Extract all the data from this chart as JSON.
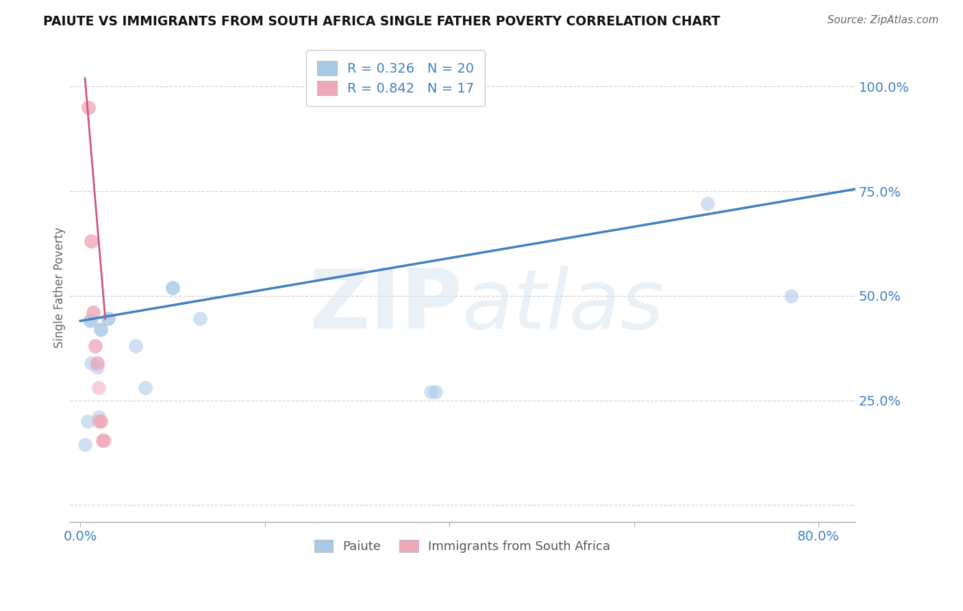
{
  "title": "PAIUTE VS IMMIGRANTS FROM SOUTH AFRICA SINGLE FATHER POVERTY CORRELATION CHART",
  "source": "Source: ZipAtlas.com",
  "ylabel": "Single Father Poverty",
  "xlim": [
    -0.012,
    0.84
  ],
  "ylim": [
    -0.04,
    1.08
  ],
  "paiute_R": 0.326,
  "paiute_N": 20,
  "sa_R": 0.842,
  "sa_N": 17,
  "paiute_color": "#a8c8e8",
  "sa_color": "#f0a8b8",
  "trendline_blue": "#4080c0",
  "trendline_pink": "#d05878",
  "paiute_x": [
    0.005,
    0.008,
    0.01,
    0.012,
    0.012,
    0.018,
    0.02,
    0.022,
    0.022,
    0.03,
    0.03,
    0.06,
    0.07,
    0.1,
    0.1,
    0.13,
    0.38,
    0.385,
    0.68,
    0.77
  ],
  "paiute_y": [
    0.145,
    0.2,
    0.44,
    0.44,
    0.34,
    0.33,
    0.21,
    0.42,
    0.42,
    0.445,
    0.445,
    0.38,
    0.28,
    0.52,
    0.52,
    0.445,
    0.27,
    0.27,
    0.72,
    0.5
  ],
  "sa_x": [
    0.009,
    0.009,
    0.012,
    0.012,
    0.014,
    0.014,
    0.016,
    0.016,
    0.018,
    0.018,
    0.02,
    0.02,
    0.022,
    0.022,
    0.024,
    0.024,
    0.026
  ],
  "sa_y": [
    0.95,
    0.95,
    0.63,
    0.63,
    0.46,
    0.46,
    0.38,
    0.38,
    0.34,
    0.34,
    0.28,
    0.2,
    0.2,
    0.2,
    0.155,
    0.155,
    0.155
  ],
  "watermark": "ZIPatlas",
  "legend_labels": [
    "Paiute",
    "Immigrants from South Africa"
  ],
  "background_color": "#ffffff",
  "grid_color": "#cccccc",
  "x_tick_positions": [
    0.0,
    0.2,
    0.4,
    0.6,
    0.8
  ],
  "y_tick_positions": [
    0.0,
    0.25,
    0.5,
    0.75,
    1.0
  ],
  "blue_trendline_x": [
    0.0,
    0.84
  ],
  "blue_trendline_y": [
    0.44,
    0.755
  ],
  "pink_trendline_x": [
    0.005,
    0.027
  ],
  "pink_trendline_y": [
    1.02,
    0.445
  ]
}
